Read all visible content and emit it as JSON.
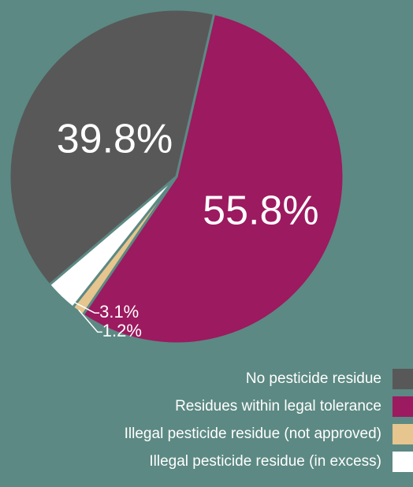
{
  "colors": {
    "background": "#5c8983",
    "leader_line": "#ffffff"
  },
  "chart_data": {
    "type": "pie",
    "slices": [
      {
        "name": "Residues within legal tolerance",
        "value": 55.8,
        "label": "55.8%",
        "color": "#9c1a5f"
      },
      {
        "name": "Illegal pesticide residue (not approved)",
        "value": 1.2,
        "label": "1.2%",
        "color": "#e6c58e"
      },
      {
        "name": "Illegal pesticide residue (in excess)",
        "value": 3.1,
        "label": "3.1%",
        "color": "#ffffff"
      },
      {
        "name": "No pesticide residue",
        "value": 39.8,
        "label": "39.8%",
        "color": "#585858"
      }
    ],
    "legend": {
      "placement": "bottom-right",
      "items": [
        {
          "label": "No pesticide residue",
          "color": "#585858"
        },
        {
          "label": "Residues within legal tolerance",
          "color": "#9c1a5f"
        },
        {
          "label": "Illegal pesticide residue (not approved)",
          "color": "#e6c58e"
        },
        {
          "label": "Illegal pesticide residue (in excess)",
          "color": "#ffffff"
        }
      ]
    }
  }
}
